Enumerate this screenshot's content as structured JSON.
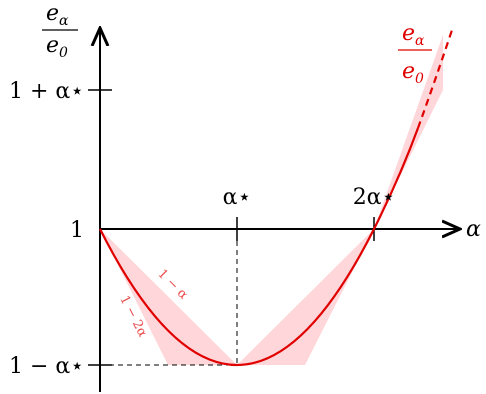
{
  "y_axis_label": {
    "numerator": {
      "base": "e",
      "sub": "α"
    },
    "denominator": {
      "base": "e",
      "sub": "0"
    }
  },
  "x_axis_label": "α",
  "y_ticks": [
    "1 + α⋆",
    "1",
    "1 − α⋆"
  ],
  "x_ticks": [
    "α⋆",
    "2α⋆"
  ],
  "curve_label": {
    "numerator": {
      "base": "e",
      "sub": "α"
    },
    "denominator": {
      "base": "e",
      "sub": "0"
    }
  },
  "bound_labels": [
    "1 − α",
    "1 − 2α"
  ]
}
